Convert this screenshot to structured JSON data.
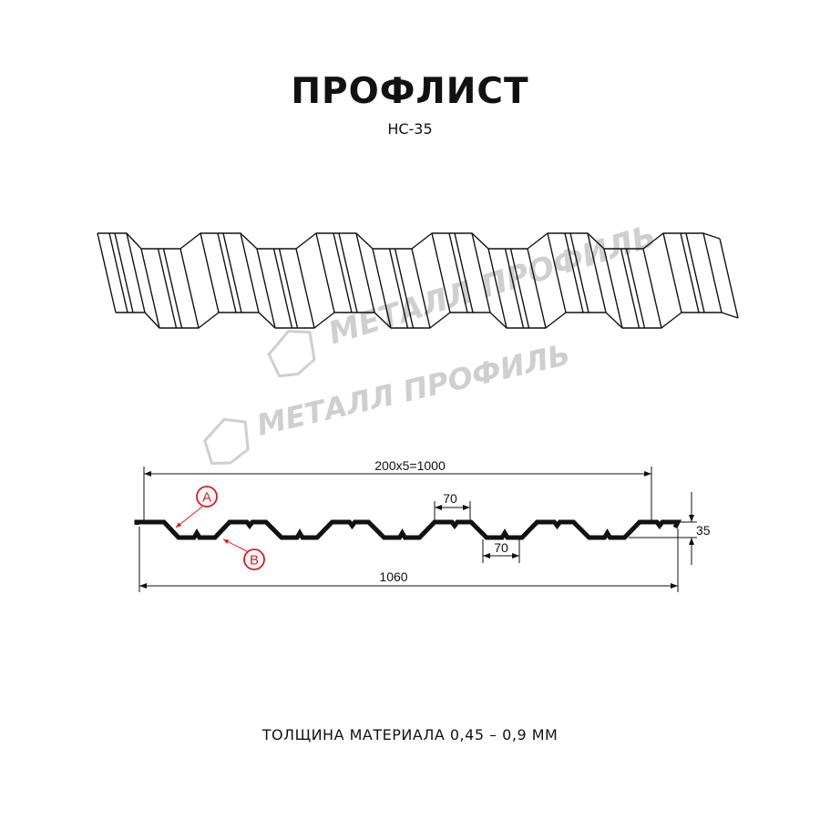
{
  "title": "ПРОФЛИСТ",
  "subtitle": "НС-35",
  "footer": "ТОЛЩИНА МАТЕРИАЛА 0,45 – 0,9 ММ",
  "watermark": "МЕТАЛЛ ПРОФИЛЬ",
  "dimensions": {
    "pitch": "200x5=1000",
    "total_width": "1060",
    "crest_width": "70",
    "trough_width": "70",
    "height": "35"
  },
  "callouts": {
    "a": "A",
    "b": "B"
  },
  "colors": {
    "line": "#111111",
    "callout": "#e0191b",
    "watermark": "#cfcfcf"
  }
}
